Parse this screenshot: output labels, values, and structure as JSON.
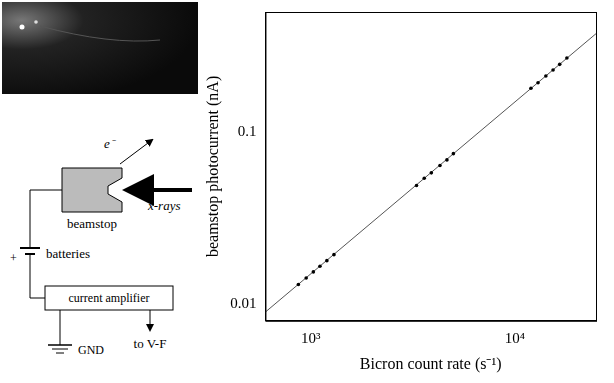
{
  "chart_data": {
    "type": "scatter",
    "x_label": "Bicron count rate (s⁻¹)",
    "y_label": "beamstop photocurrent (nA)",
    "log": true,
    "grid": false,
    "xlim": [
      600,
      25000
    ],
    "ylim": [
      0.008,
      0.5
    ],
    "xticks": [
      {
        "value": 1000,
        "label": "10³"
      },
      {
        "value": 10000,
        "label": "10⁴"
      }
    ],
    "yticks": [
      0.01,
      0.1
    ],
    "series": [
      {
        "type": "scatter",
        "color": "#000000",
        "marker": "circle",
        "x": [
          870,
          950,
          1030,
          1110,
          1200,
          1300,
          3300,
          3600,
          3900,
          4300,
          4650,
          5000,
          12000,
          13000,
          14200,
          15400,
          16600,
          18000
        ],
        "values": [
          0.013,
          0.0142,
          0.0154,
          0.0166,
          0.0179,
          0.0194,
          0.049,
          0.054,
          0.058,
          0.064,
          0.069,
          0.075,
          0.18,
          0.194,
          0.212,
          0.23,
          0.248,
          0.27
        ]
      },
      {
        "type": "line",
        "color": "#555555",
        "line_style": "solid",
        "x": [
          600,
          25000
        ],
        "values": [
          0.009,
          0.374
        ]
      }
    ]
  },
  "diagram": {
    "electron_label": "e⁻",
    "beam_label": "x-rays",
    "beamstop_label": "beamstop",
    "battery_sign": "+",
    "battery_label": "batteries",
    "amplifier_label": "current amplifier",
    "output_label": "to V-F",
    "ground_label": "GND"
  }
}
